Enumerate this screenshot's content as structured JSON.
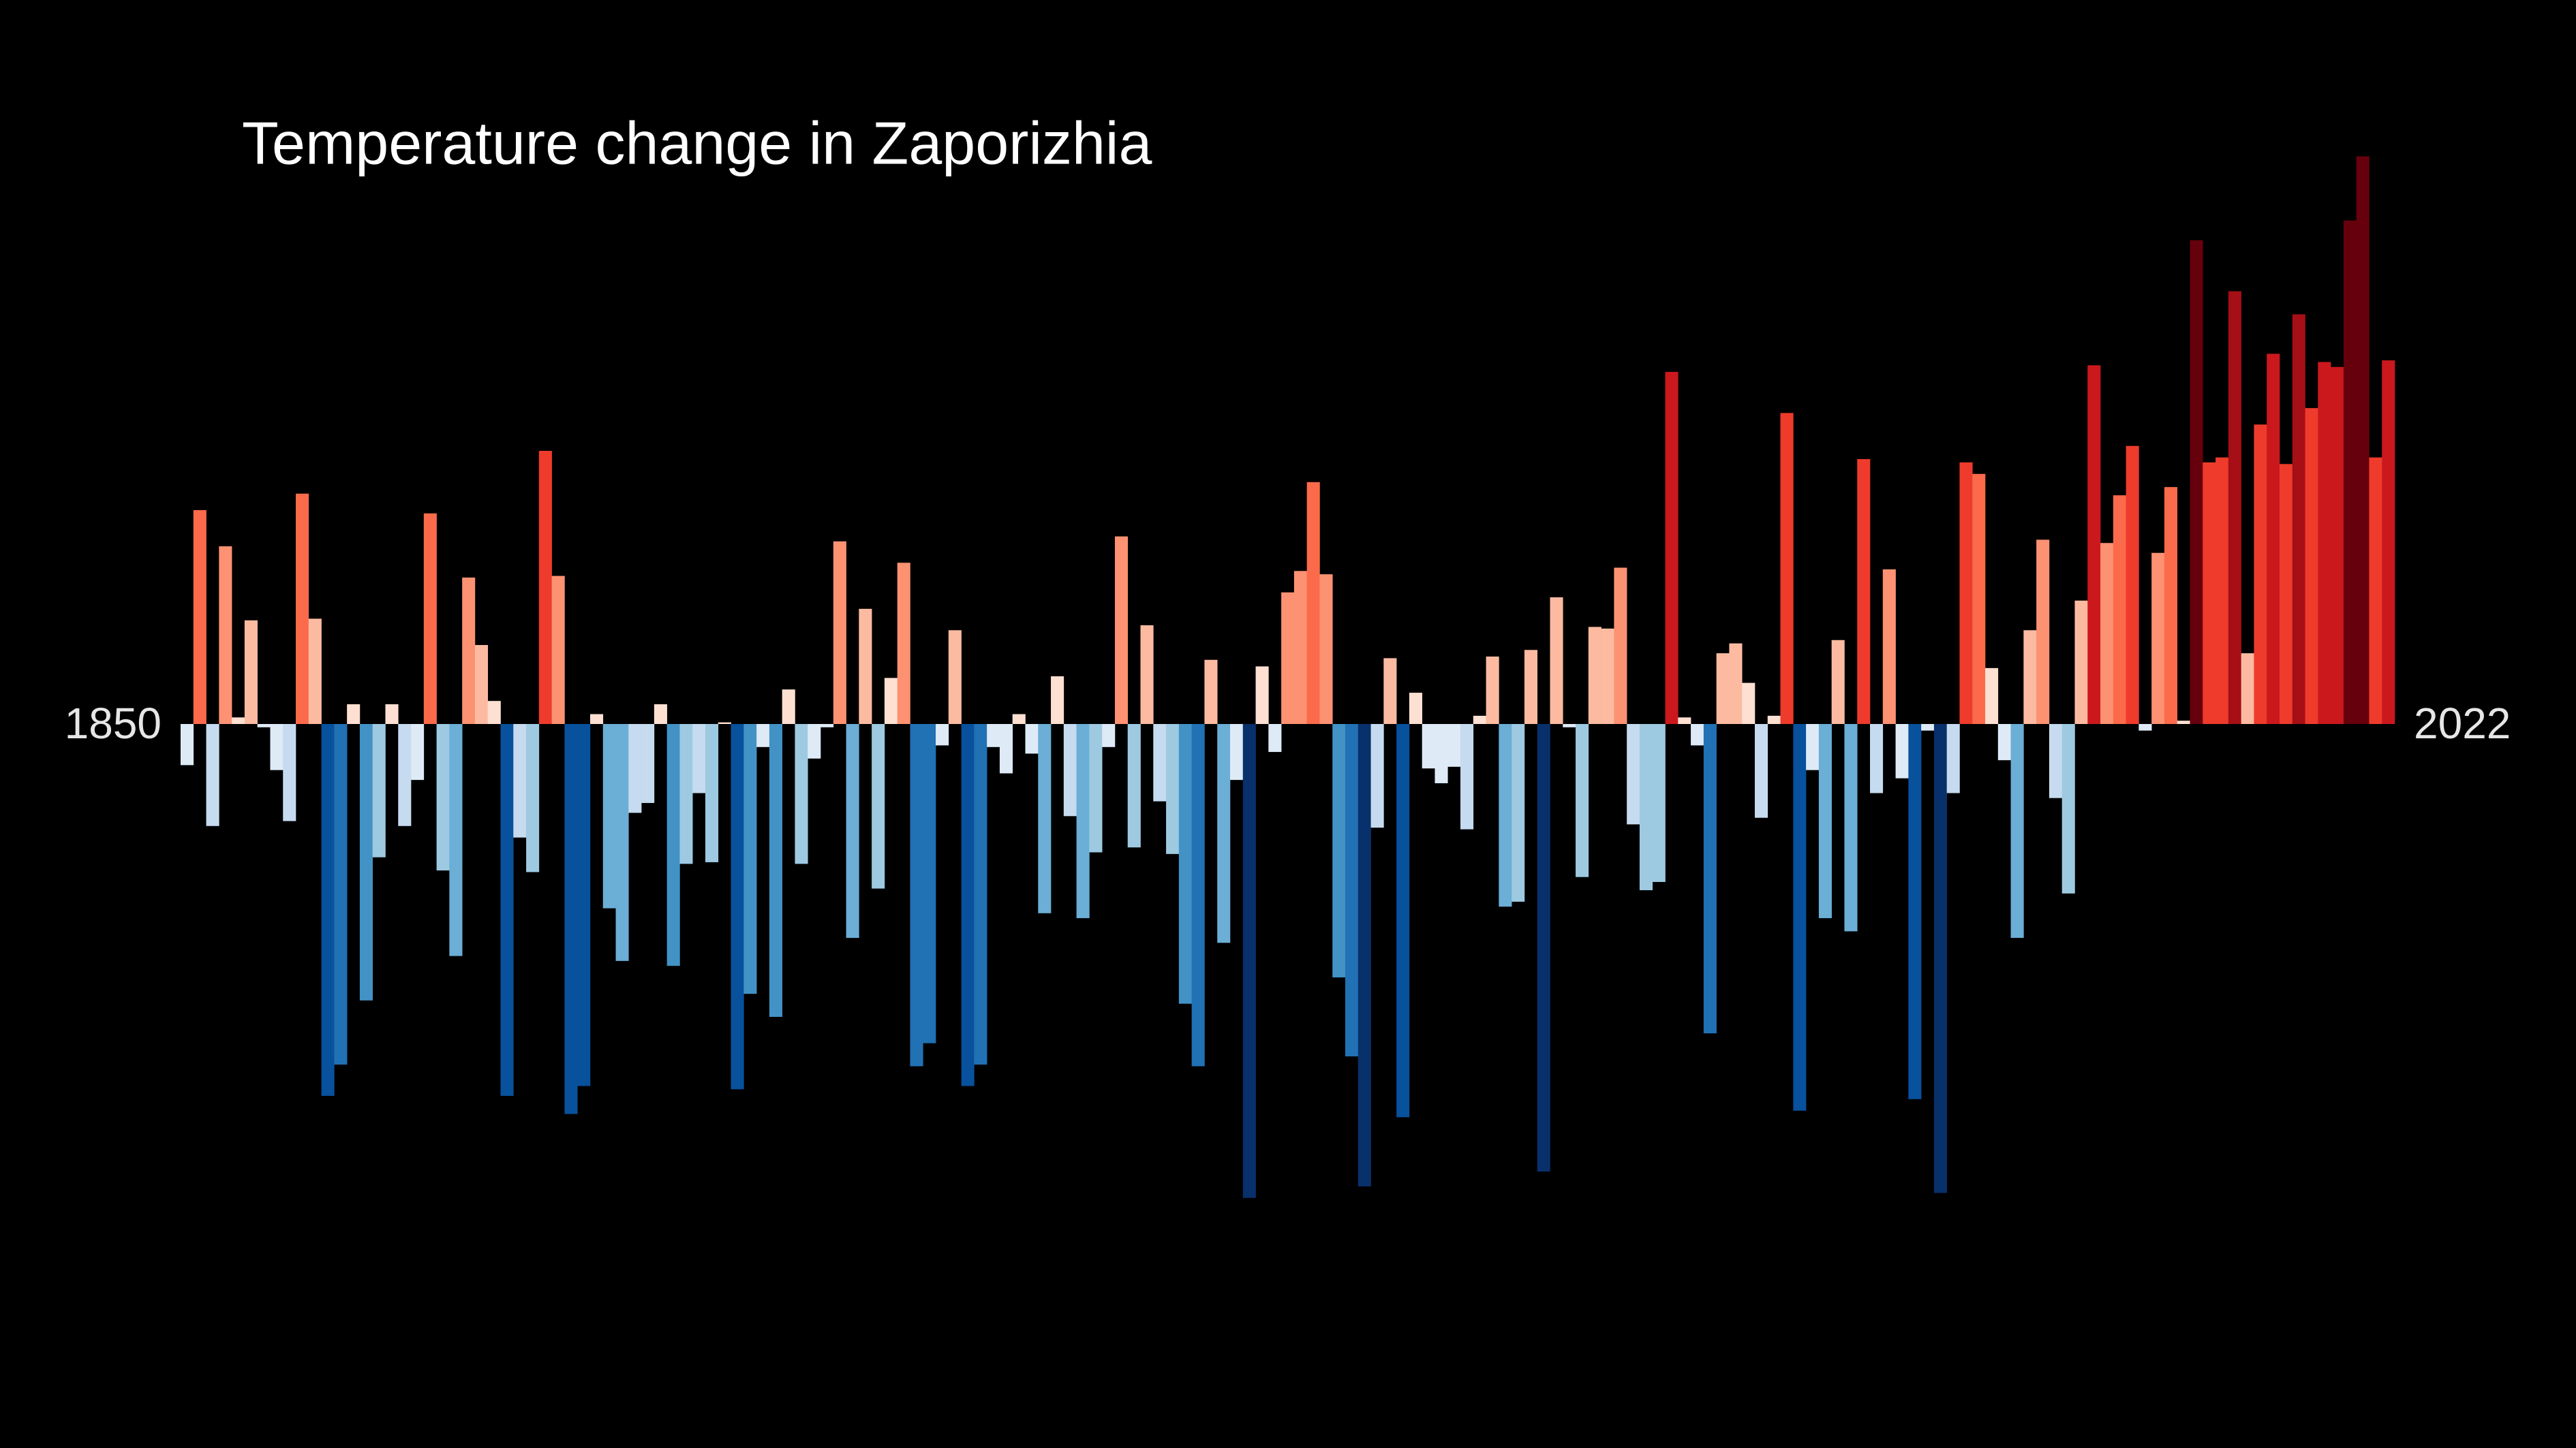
{
  "chart_data": {
    "type": "bar",
    "title": "Temperature change in Zaporizhia",
    "categories": [
      "1850",
      null,
      null,
      null,
      null,
      null,
      null,
      null,
      null,
      null,
      null,
      null,
      null,
      null,
      null,
      null,
      null,
      null,
      null,
      null,
      null,
      null,
      null,
      null,
      null,
      null,
      null,
      null,
      null,
      null,
      null,
      null,
      null,
      null,
      null,
      null,
      null,
      null,
      null,
      null,
      null,
      null,
      null,
      null,
      null,
      null,
      null,
      null,
      null,
      null,
      null,
      null,
      null,
      null,
      null,
      null,
      null,
      null,
      null,
      null,
      null,
      null,
      null,
      null,
      null,
      null,
      null,
      null,
      null,
      null,
      null,
      null,
      null,
      null,
      null,
      null,
      null,
      null,
      null,
      null,
      null,
      null,
      null,
      null,
      null,
      null,
      null,
      null,
      null,
      null,
      null,
      null,
      null,
      null,
      null,
      null,
      null,
      null,
      null,
      null,
      null,
      null,
      null,
      null,
      null,
      null,
      null,
      null,
      null,
      null,
      null,
      null,
      null,
      null,
      null,
      null,
      null,
      null,
      null,
      null,
      null,
      null,
      null,
      null,
      null,
      null,
      null,
      null,
      null,
      null,
      null,
      null,
      null,
      null,
      null,
      null,
      null,
      null,
      null,
      null,
      null,
      null,
      null,
      null,
      null,
      null,
      null,
      null,
      null,
      null,
      null,
      null,
      null,
      null,
      null,
      null,
      null,
      null,
      null,
      null,
      null,
      null,
      null,
      null,
      null,
      null,
      null,
      null,
      null,
      null,
      null,
      null,
      "2022"
    ],
    "values": [
      -0.25,
      1.3,
      -0.62,
      1.08,
      0.04,
      0.63,
      -0.02,
      -0.28,
      -0.59,
      1.4,
      0.64,
      -2.26,
      -2.07,
      0.12,
      -1.68,
      -0.81,
      0.12,
      -0.62,
      -0.34,
      1.28,
      -0.89,
      -1.41,
      0.89,
      0.48,
      0.14,
      -2.26,
      -0.69,
      -0.9,
      1.66,
      0.9,
      -2.37,
      -2.2,
      0.06,
      -1.12,
      -1.44,
      -0.54,
      -0.48,
      0.12,
      -1.47,
      -0.85,
      -0.42,
      -0.84,
      0.01,
      -2.22,
      -1.64,
      -0.14,
      -1.78,
      0.21,
      -0.85,
      -0.21,
      -0.02,
      1.11,
      -1.3,
      0.7,
      -1.0,
      0.28,
      0.98,
      -2.08,
      -1.94,
      -0.13,
      0.57,
      -2.2,
      -2.07,
      -0.14,
      -0.3,
      0.06,
      -0.18,
      -1.15,
      0.29,
      -0.56,
      -1.18,
      -0.78,
      -0.14,
      1.14,
      -0.75,
      0.6,
      -0.47,
      -0.79,
      -1.7,
      -2.08,
      0.39,
      -1.33,
      -0.34,
      -2.88,
      0.35,
      -0.17,
      0.8,
      0.93,
      1.47,
      0.91,
      -1.54,
      -2.02,
      -2.81,
      -0.63,
      0.4,
      -2.39,
      0.19,
      -0.27,
      -0.36,
      -0.26,
      -0.64,
      0.05,
      0.41,
      -1.11,
      -1.08,
      0.45,
      -2.72,
      0.77,
      -0.02,
      -0.93,
      0.59,
      0.58,
      0.95,
      -0.61,
      -1.01,
      -0.96,
      2.14,
      0.04,
      -0.13,
      -1.88,
      0.43,
      0.49,
      0.25,
      -0.57,
      0.05,
      1.89,
      -2.35,
      -0.28,
      -1.18,
      0.51,
      -1.26,
      1.61,
      -0.42,
      0.94,
      -0.33,
      -2.28,
      -0.04,
      -2.85,
      -0.42,
      1.59,
      1.52,
      0.34,
      -0.22,
      -1.3,
      0.57,
      1.12,
      -0.45,
      -1.03,
      0.75,
      2.18,
      1.1,
      1.39,
      1.69,
      -0.04,
      1.04,
      1.44,
      0.02,
      2.94,
      1.59,
      1.62,
      2.63,
      0.43,
      1.82,
      2.25,
      1.58,
      2.49,
      1.92,
      2.2,
      2.17,
      3.06,
      3.45,
      1.62,
      2.21
    ],
    "colormap": {
      "colors": [
        "#08306b",
        "#08519c",
        "#2171b5",
        "#4292c6",
        "#6baed6",
        "#9ecae1",
        "#c6dbef",
        "#deebf7",
        "#fee0d2",
        "#fcbba1",
        "#fc9272",
        "#fb6a4a",
        "#ef3b2c",
        "#cb181d",
        "#a50f15",
        "#67000d"
      ],
      "range": [
        -2.9,
        3.1
      ]
    },
    "ylim": [
      -4.4,
      4.4
    ],
    "background": "#000000"
  }
}
